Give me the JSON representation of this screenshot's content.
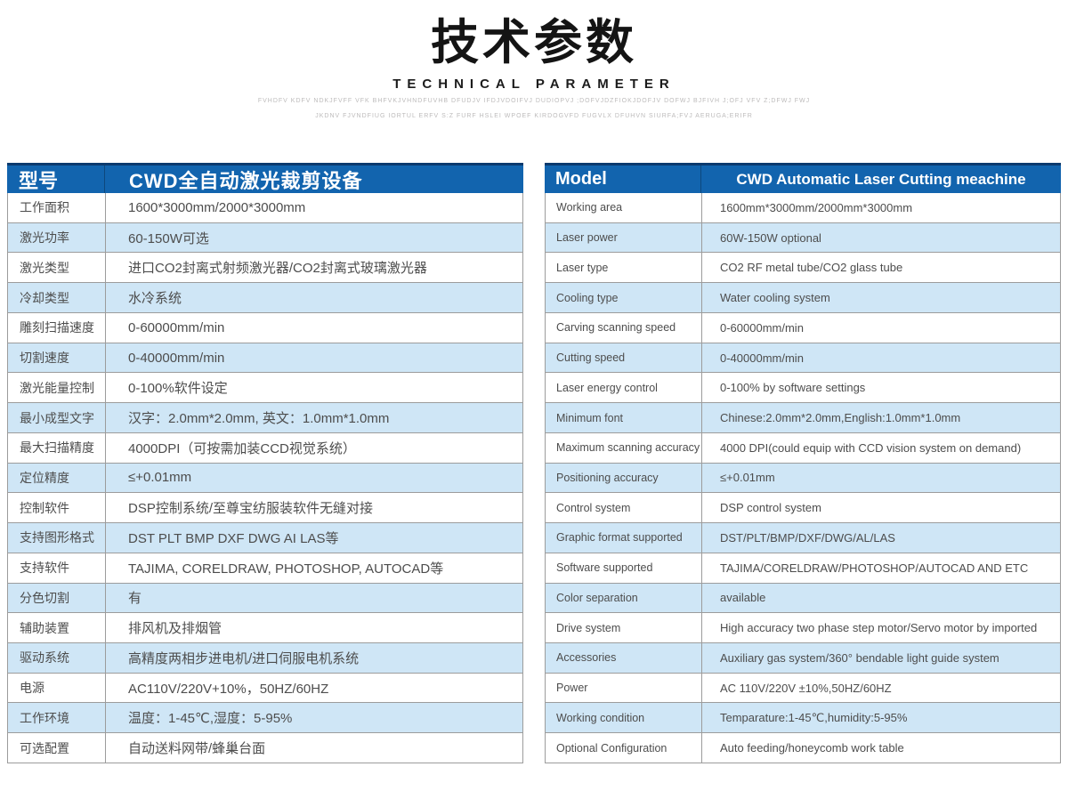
{
  "header": {
    "title_cn": "技术参数",
    "title_en": "TECHNICAL PARAMETER",
    "fineprint_line1": "FVHDFV KDFV NDKJFVFF VFK BHFVKJVHNDFUVHB DFUDJV IFDJVDOIFVJ DUDIOPVJ ;DOFVJDZFIOKJDOFJV DOFWJ BJFIVH J;OFJ VFV Z;DFWJ FWJ",
    "fineprint_line2": "JKDNV FJVNDFIUG IORTUL ERFV S:Z FURF HSLEI WPOEF KIRDOGVFD FUGVLX DFUHVN SIURFA;FVJ AERUGA;ERIFR"
  },
  "colors": {
    "header_blue": "#1264ae",
    "header_top_border": "#0b3a6e",
    "alt_row_blue": "#cfe6f6",
    "border_gray": "#9c9c9c",
    "text_gray": "#4d4d4d"
  },
  "left_table": {
    "header": {
      "label": "型号",
      "value": "CWD全自动激光裁剪设备"
    },
    "rows": [
      {
        "label": "工作面积",
        "value": "1600*3000mm/2000*3000mm"
      },
      {
        "label": "激光功率",
        "value": "60-150W可选"
      },
      {
        "label": "激光类型",
        "value": "进口CO2封离式射频激光器/CO2封离式玻璃激光器"
      },
      {
        "label": "冷却类型",
        "value": "水冷系统"
      },
      {
        "label": "雕刻扫描速度",
        "value": "0-60000mm/min"
      },
      {
        "label": "切割速度",
        "value": "0-40000mm/min"
      },
      {
        "label": "激光能量控制",
        "value": "0-100%软件设定"
      },
      {
        "label": "最小成型文字",
        "value": "汉字：2.0mm*2.0mm, 英文：1.0mm*1.0mm"
      },
      {
        "label": "最大扫描精度",
        "value": "4000DPI（可按需加装CCD视觉系统）"
      },
      {
        "label": "定位精度",
        "value": "≤+0.01mm"
      },
      {
        "label": "控制软件",
        "value": "DSP控制系统/至尊宝纺服装软件无缝对接"
      },
      {
        "label": "支持图形格式",
        "value": "DST PLT BMP DXF DWG AI LAS等"
      },
      {
        "label": "支持软件",
        "value": "TAJIMA, CORELDRAW, PHOTOSHOP, AUTOCAD等"
      },
      {
        "label": "分色切割",
        "value": "有"
      },
      {
        "label": "辅助装置",
        "value": "排风机及排烟管"
      },
      {
        "label": "驱动系统",
        "value": "高精度两相步进电机/进口伺服电机系统"
      },
      {
        "label": "电源",
        "value": "AC110V/220V+10%，50HZ/60HZ"
      },
      {
        "label": "工作环境",
        "value": "温度：1-45℃,湿度：5-95%"
      },
      {
        "label": "可选配置",
        "value": "自动送料网带/蜂巢台面"
      }
    ]
  },
  "right_table": {
    "header": {
      "label": "Model",
      "value": "CWD Automatic Laser Cutting meachine"
    },
    "rows": [
      {
        "label": "Working area",
        "value": "1600mm*3000mm/2000mm*3000mm"
      },
      {
        "label": "Laser power",
        "value": "60W-150W optional"
      },
      {
        "label": "Laser type",
        "value": "CO2 RF metal tube/CO2 glass tube"
      },
      {
        "label": "Cooling type",
        "value": "Water cooling system"
      },
      {
        "label": "Carving scanning speed",
        "value": "0-60000mm/min"
      },
      {
        "label": "Cutting speed",
        "value": "0-40000mm/min"
      },
      {
        "label": "Laser energy control",
        "value": "0-100% by software settings"
      },
      {
        "label": "Minimum font",
        "value": "Chinese:2.0mm*2.0mm,English:1.0mm*1.0mm"
      },
      {
        "label": "Maximum scanning accuracy",
        "value": "4000 DPI(could equip with CCD vision system on demand)"
      },
      {
        "label": "Positioning accuracy",
        "value": "≤+0.01mm"
      },
      {
        "label": "Control system",
        "value": "DSP control system"
      },
      {
        "label": "Graphic format supported",
        "value": "DST/PLT/BMP/DXF/DWG/AL/LAS"
      },
      {
        "label": "Software supported",
        "value": "TAJIMA/CORELDRAW/PHOTOSHOP/AUTOCAD AND ETC"
      },
      {
        "label": "Color separation",
        "value": "available"
      },
      {
        "label": "Drive system",
        "value": "High accuracy two phase step motor/Servo motor by imported"
      },
      {
        "label": "Accessories",
        "value": "Auxiliary gas system/360°  bendable light guide system"
      },
      {
        "label": "Power",
        "value": "AC 110V/220V ±10%,50HZ/60HZ"
      },
      {
        "label": "Working condition",
        "value": "Temparature:1-45℃,humidity:5-95%"
      },
      {
        "label": "Optional Configuration",
        "value": "Auto feeding/honeycomb work table"
      }
    ]
  }
}
